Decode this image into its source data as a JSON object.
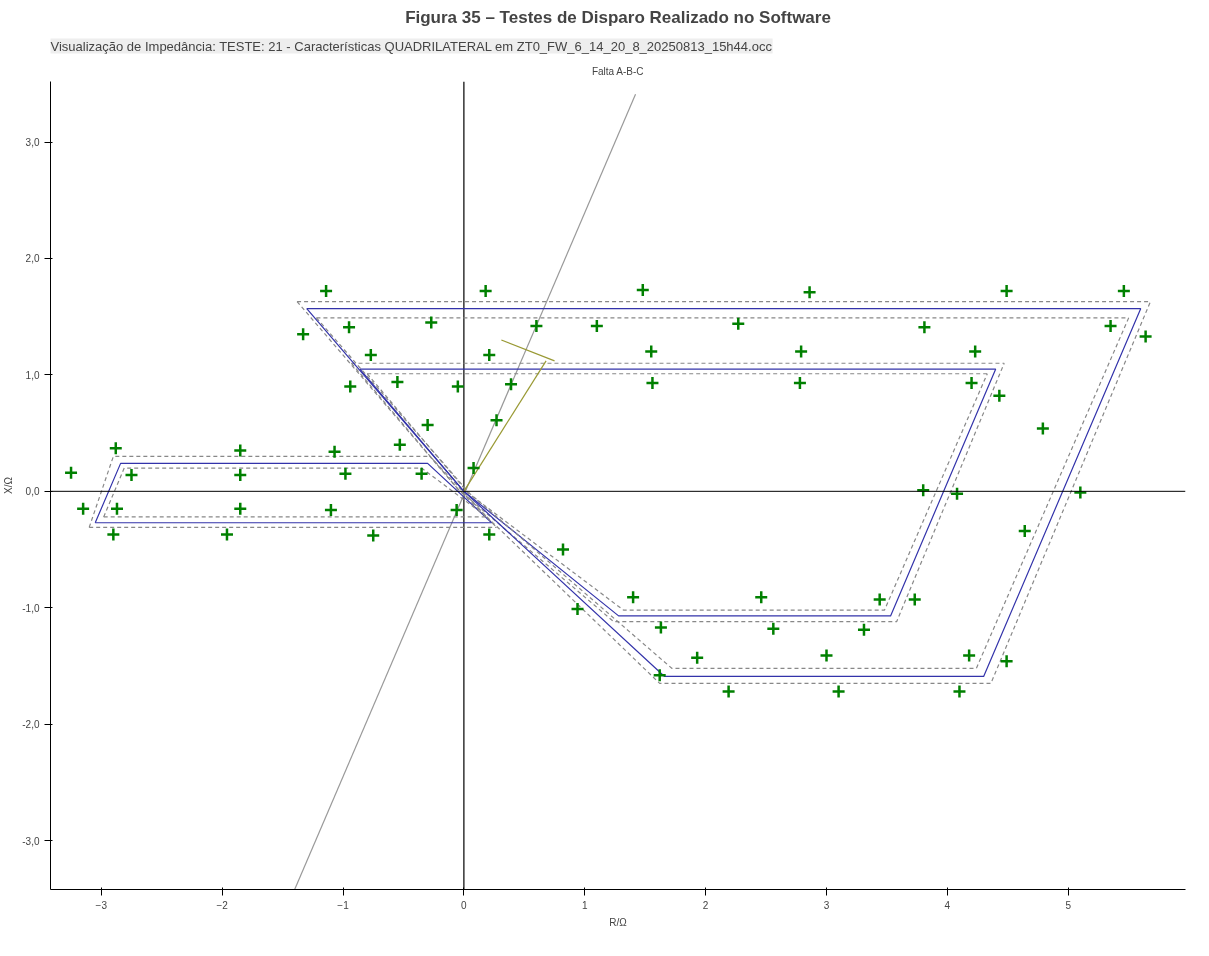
{
  "chart_data": {
    "type": "scatter",
    "title": "Figura 35 – Testes de Disparo Realizado no Software",
    "subtitle": "Visualização de Impedância: TESTE: 21 - Características QUADRILATERAL em ZT0_FW_6_14_20_8_20250813_15h44.occ",
    "annotations": [
      "Falta A-B-C"
    ],
    "xlabel": "R/Ω",
    "ylabel": "X/Ω",
    "xlim": [
      -3.42,
      5.97
    ],
    "ylim": [
      -3.42,
      3.52
    ],
    "xticks": [
      -3,
      -2,
      -1,
      0,
      1,
      2,
      3,
      4,
      5
    ],
    "yticks": [
      {
        "value": -3,
        "label": "-3,0"
      },
      {
        "value": -2,
        "label": "-2,0"
      },
      {
        "value": -1,
        "label": "-1,0"
      },
      {
        "value": 0,
        "label": "0,0"
      },
      {
        "value": 1,
        "label": "1,0"
      },
      {
        "value": 2,
        "label": "2,0"
      },
      {
        "value": 3,
        "label": "3,0"
      }
    ],
    "grid": false,
    "ref_lines": [
      {
        "axis": "y",
        "value": 0,
        "color": "#000000"
      }
    ],
    "series": [
      {
        "type": "line",
        "color": "#000000",
        "line_style": "solid",
        "x": [
          0,
          0
        ],
        "values": [
          -3.42,
          3.52
        ]
      },
      {
        "type": "line",
        "color": "#999999",
        "line_style": "solid",
        "x": [
          -1.4,
          1.42
        ],
        "values": [
          -3.42,
          3.41
        ]
      },
      {
        "type": "line",
        "color": "#3333aa",
        "line_style": "solid",
        "x": [
          -3.05,
          -2.84,
          -0.3,
          0.23
        ],
        "values": [
          -0.27,
          0.24,
          0.24,
          -0.27
        ]
      },
      {
        "type": "line",
        "color": "#3333aa",
        "line_style": "solid",
        "x": [
          -3.05,
          0.23
        ],
        "values": [
          -0.27,
          -0.27
        ]
      },
      {
        "type": "line",
        "color": "#888888",
        "line_style": "dashed",
        "x": [
          -3.1,
          -2.9,
          -0.28,
          0.27
        ],
        "values": [
          -0.31,
          0.3,
          0.3,
          -0.31
        ]
      },
      {
        "type": "line",
        "color": "#888888",
        "line_style": "dashed",
        "x": [
          -3.1,
          0.27
        ],
        "values": [
          -0.31,
          -0.31
        ]
      },
      {
        "type": "line",
        "color": "#888888",
        "line_style": "dashed",
        "x": [
          -2.98,
          -2.81,
          -0.35,
          0.19
        ],
        "values": [
          -0.22,
          0.2,
          0.2,
          -0.22
        ]
      },
      {
        "type": "line",
        "color": "#888888",
        "line_style": "dashed",
        "x": [
          -2.98,
          0.19
        ],
        "values": [
          -0.22,
          -0.22
        ]
      },
      {
        "type": "line",
        "color": "#3333aa",
        "line_style": "solid",
        "x": [
          -0.86,
          4.4
        ],
        "values": [
          1.05,
          1.05
        ]
      },
      {
        "type": "line",
        "color": "#3333aa",
        "line_style": "solid",
        "x": [
          -0.86,
          0,
          1.28,
          3.53,
          4.4
        ],
        "values": [
          1.05,
          0,
          -1.07,
          -1.07,
          1.05
        ]
      },
      {
        "type": "line",
        "color": "#888888",
        "line_style": "dashed",
        "x": [
          -0.93,
          4.47
        ],
        "values": [
          1.1,
          1.1
        ]
      },
      {
        "type": "line",
        "color": "#888888",
        "line_style": "dashed",
        "x": [
          -0.93,
          -0.05,
          1.24,
          3.58,
          4.47
        ],
        "values": [
          1.1,
          0.02,
          -1.12,
          -1.12,
          1.1
        ]
      },
      {
        "type": "line",
        "color": "#888888",
        "line_style": "dashed",
        "x": [
          -0.8,
          4.33
        ],
        "values": [
          1.01,
          1.01
        ]
      },
      {
        "type": "line",
        "color": "#888888",
        "line_style": "dashed",
        "x": [
          -0.8,
          0.04,
          1.32,
          3.48,
          4.33
        ],
        "values": [
          1.01,
          -0.02,
          -1.02,
          -1.02,
          1.01
        ]
      },
      {
        "type": "line",
        "color": "#3333aa",
        "line_style": "solid",
        "x": [
          -1.3,
          5.6
        ],
        "values": [
          1.57,
          1.57
        ]
      },
      {
        "type": "line",
        "color": "#3333aa",
        "line_style": "solid",
        "x": [
          -1.3,
          0,
          1.66,
          4.3,
          5.6
        ],
        "values": [
          1.57,
          0,
          -1.59,
          -1.59,
          1.57
        ]
      },
      {
        "type": "line",
        "color": "#888888",
        "line_style": "dashed",
        "x": [
          -1.38,
          5.68
        ],
        "values": [
          1.63,
          1.63
        ]
      },
      {
        "type": "line",
        "color": "#888888",
        "line_style": "dashed",
        "x": [
          -1.38,
          -0.05,
          1.62,
          4.36,
          5.68
        ],
        "values": [
          1.63,
          0.02,
          -1.65,
          -1.65,
          1.63
        ]
      },
      {
        "type": "line",
        "color": "#888888",
        "line_style": "dashed",
        "x": [
          -1.22,
          5.5
        ],
        "values": [
          1.49,
          1.49
        ]
      },
      {
        "type": "line",
        "color": "#888888",
        "line_style": "dashed",
        "x": [
          -1.22,
          0.05,
          1.72,
          4.24,
          5.5
        ],
        "values": [
          1.49,
          -0.02,
          -1.52,
          -1.52,
          1.49
        ]
      },
      {
        "type": "line",
        "color": "#999933",
        "line_style": "solid",
        "x": [
          0,
          0.68
        ],
        "values": [
          0,
          1.12
        ]
      },
      {
        "type": "line",
        "color": "#999933",
        "line_style": "solid",
        "x": [
          0.31,
          0.75
        ],
        "values": [
          1.3,
          1.12
        ]
      },
      {
        "color": "#008000",
        "marker": "cross",
        "x": [
          -1.14,
          0.18,
          1.48,
          2.86,
          4.49,
          5.46,
          -1.33,
          -0.95,
          -0.27,
          0.6,
          1.1,
          2.27,
          3.81,
          5.35,
          5.64,
          -0.77,
          0.21,
          1.55,
          2.79,
          4.23,
          -0.94,
          -0.55,
          -0.05,
          0.39,
          1.56,
          2.78,
          4.2,
          4.43,
          -0.3,
          0.27,
          4.79,
          -2.88,
          -1.85,
          -1.07,
          -0.53,
          -3.25,
          -2.75,
          -1.85,
          -0.98,
          -0.35,
          0.08,
          3.8,
          4.08,
          5.1,
          -3.15,
          -2.87,
          -1.85,
          -1.1,
          -0.06,
          -2.9,
          -1.96,
          -0.75,
          0.21,
          0.82,
          4.64,
          0.94,
          1.4,
          2.46,
          3.44,
          3.73,
          1.63,
          2.56,
          3.31,
          1.62,
          1.93,
          3.0,
          4.18,
          4.49,
          2.19,
          3.1,
          4.1
        ],
        "values": [
          1.72,
          1.72,
          1.73,
          1.71,
          1.72,
          1.72,
          1.35,
          1.41,
          1.45,
          1.42,
          1.42,
          1.44,
          1.41,
          1.42,
          1.33,
          1.17,
          1.17,
          1.2,
          1.2,
          1.2,
          0.9,
          0.94,
          0.9,
          0.92,
          0.93,
          0.93,
          0.93,
          0.82,
          0.57,
          0.61,
          0.54,
          0.37,
          0.35,
          0.34,
          0.4,
          0.16,
          0.14,
          0.14,
          0.15,
          0.15,
          0.2,
          0.01,
          -0.02,
          -0.01,
          -0.15,
          -0.15,
          -0.15,
          -0.16,
          -0.16,
          -0.37,
          -0.37,
          -0.38,
          -0.37,
          -0.5,
          -0.34,
          -1.01,
          -0.91,
          -0.91,
          -0.93,
          -0.93,
          -1.17,
          -1.18,
          -1.19,
          -1.58,
          -1.43,
          -1.41,
          -1.41,
          -1.46,
          -1.72,
          -1.72,
          -1.72
        ]
      }
    ]
  }
}
